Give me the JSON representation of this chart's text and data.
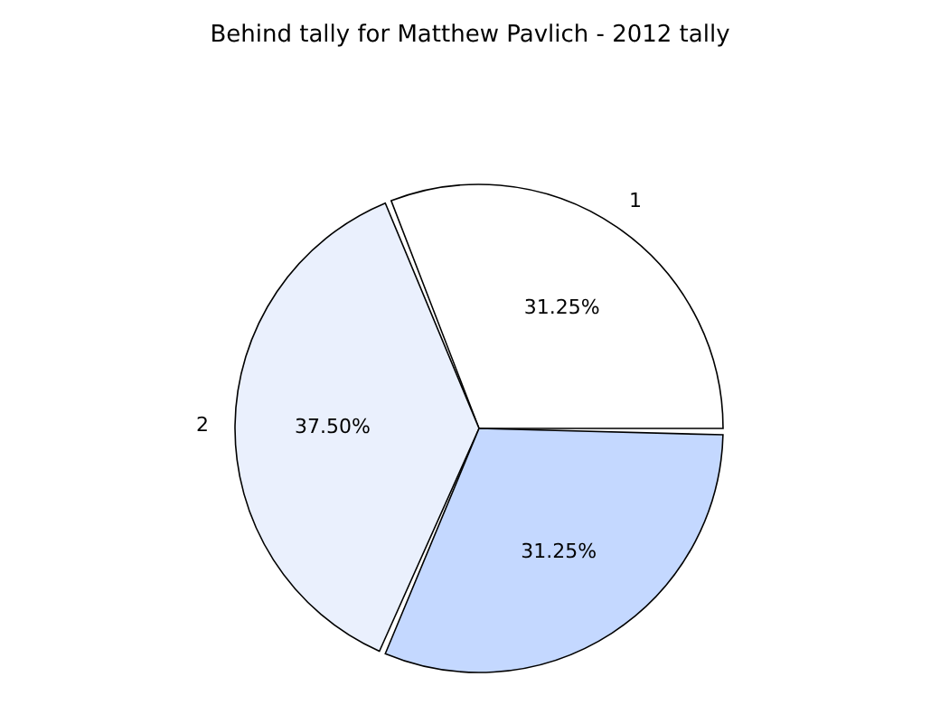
{
  "chart_data": {
    "type": "pie",
    "title": "Behind tally for Matthew Pavlich - 2012 tally",
    "categories": [
      "1",
      "2",
      null
    ],
    "values": [
      31.25,
      37.5,
      31.25
    ],
    "value_labels": [
      "31.25%",
      "37.50%",
      "31.25%"
    ],
    "colors": [
      "#ffffff",
      "#eaf0fd",
      "#c4d8ff"
    ],
    "legend": false
  }
}
